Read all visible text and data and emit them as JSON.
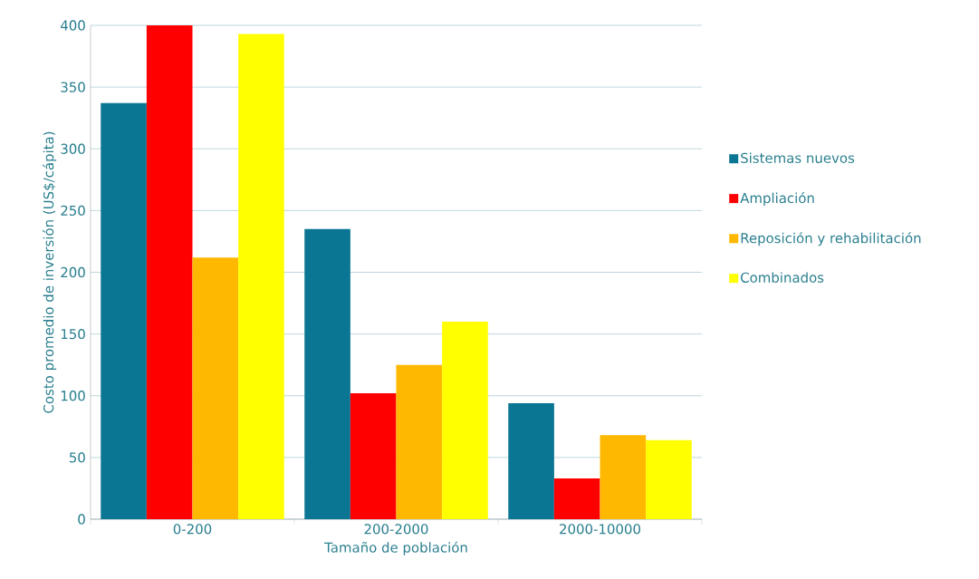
{
  "chart_data": {
    "type": "bar",
    "xlabel": "Tamaño de población",
    "ylabel": "Costo promedio de inversión (US$/cápita)",
    "categories": [
      "0-200",
      "200-2000",
      "2000-10000"
    ],
    "series": [
      {
        "name": "Sistemas nuevos",
        "color": "#0b7694",
        "values": [
          337,
          235,
          94
        ]
      },
      {
        "name": "Ampliación",
        "color": "#ff0000",
        "values": [
          400,
          102,
          33
        ]
      },
      {
        "name": "Reposición y rehabilitación",
        "color": "#ffb800",
        "values": [
          212,
          125,
          68
        ]
      },
      {
        "name": "Combinados",
        "color": "#ffff00",
        "values": [
          393,
          160,
          64
        ]
      }
    ],
    "ylim": [
      0,
      400
    ],
    "yticks": [
      0,
      50,
      100,
      150,
      200,
      250,
      300,
      350,
      400
    ],
    "grid": "y",
    "legend": "right"
  }
}
